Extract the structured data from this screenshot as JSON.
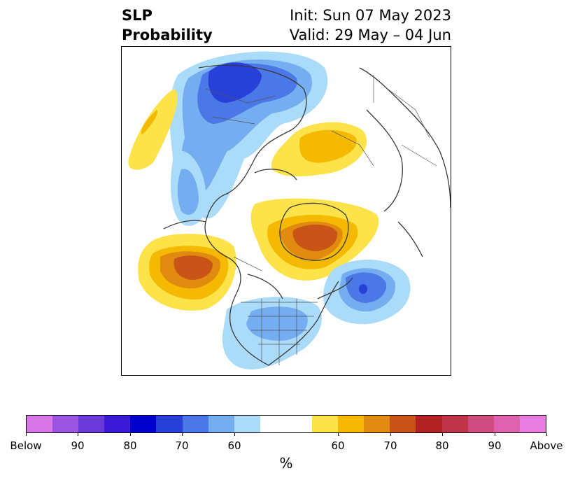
{
  "title": {
    "left_line1": "SLP",
    "left_line2": "Probability",
    "right_line1": "Init: Sun 07 May 2023",
    "right_line2": "Valid: 29 May – 04 Jun"
  },
  "colorbar": {
    "label": "%",
    "colors": [
      "#d876e8",
      "#9b55e0",
      "#6a3ad8",
      "#3a1ad6",
      "#0000cc",
      "#2640d8",
      "#4a78e6",
      "#74aef0",
      "#aadcfa",
      "#ffffff",
      "#ffffff",
      "#fde24a",
      "#f4b900",
      "#e08a10",
      "#c95418",
      "#b22222",
      "#c0344a",
      "#d04c7e",
      "#de62ae",
      "#e87ee0"
    ],
    "ticks": [
      {
        "label": "Below",
        "value": "Below"
      },
      {
        "label": "90",
        "value": 90
      },
      {
        "label": "80",
        "value": 80
      },
      {
        "label": "70",
        "value": 70
      },
      {
        "label": "60",
        "value": 60
      },
      {
        "label": "60",
        "value": 60
      },
      {
        "label": "70",
        "value": 70
      },
      {
        "label": "80",
        "value": 80
      },
      {
        "label": "90",
        "value": 90
      },
      {
        "label": "Above",
        "value": "Above"
      }
    ]
  },
  "legend_colors": {
    "below_light": "#aadcfa",
    "below_mid": "#74aef0",
    "below_strong": "#4a78e6",
    "below_deep": "#2640d8",
    "above_light": "#fde24a",
    "above_mid": "#f4b900",
    "above_strong": "#e08a10",
    "above_deep": "#c95418",
    "above_extreme": "#b22222"
  }
}
